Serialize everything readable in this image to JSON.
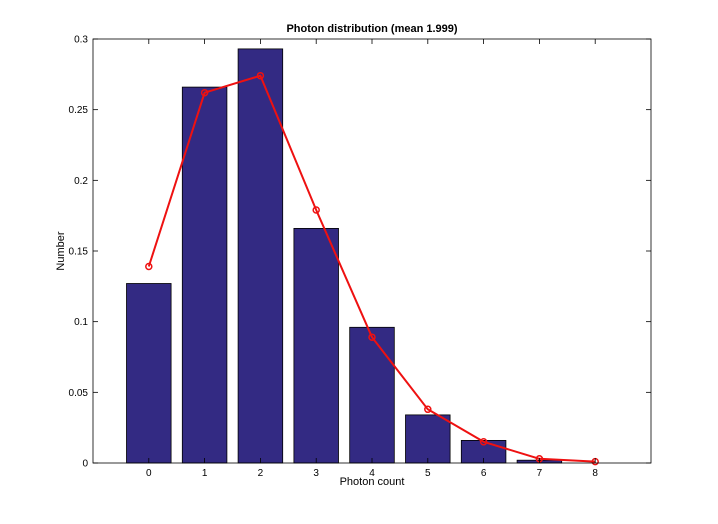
{
  "chart_data": {
    "type": "bar",
    "title": "Photon distribution (mean 1.999)",
    "xlabel": "Photon count",
    "ylabel": "Number",
    "xlim": [
      -1,
      9
    ],
    "ylim": [
      0,
      0.3
    ],
    "xticks": [
      "0",
      "1",
      "2",
      "3",
      "4",
      "5",
      "6",
      "7",
      "8"
    ],
    "yticks": [
      "0",
      "0.05",
      "0.1",
      "0.15",
      "0.2",
      "0.25",
      "0.3"
    ],
    "grid": false,
    "categories": [
      0,
      1,
      2,
      3,
      4,
      5,
      6,
      7,
      8
    ],
    "series": [
      {
        "type": "bar",
        "color": "#332a83",
        "values": [
          0.127,
          0.266,
          0.293,
          0.166,
          0.096,
          0.034,
          0.016,
          0.002,
          0.0
        ]
      },
      {
        "type": "line",
        "color": "#ee1111",
        "marker": "circle",
        "values": [
          0.139,
          0.262,
          0.274,
          0.179,
          0.089,
          0.038,
          0.015,
          0.003,
          0.001
        ]
      }
    ]
  }
}
